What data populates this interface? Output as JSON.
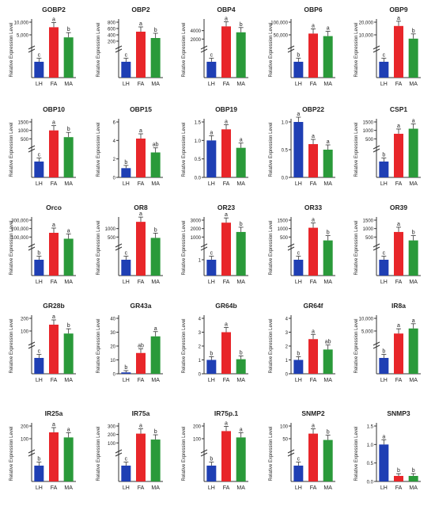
{
  "figure": {
    "ylabel": "Relative Expression Level",
    "colors": {
      "LH": "#1f3fb4",
      "FA": "#e8262a",
      "MA": "#2a9a3a"
    }
  },
  "chart_data": [
    {
      "type": "bar",
      "title": "GOBP2",
      "categories": [
        "LH",
        "FA",
        "MA"
      ],
      "values": [
        1,
        8000,
        4000
      ],
      "letters": [
        "c",
        "a",
        "b"
      ],
      "broken_axis": true,
      "yticks_lower": [],
      "yticks_upper": [
        "5,000",
        "10,000"
      ],
      "ylim_upper": [
        0,
        10000
      ]
    },
    {
      "type": "bar",
      "title": "OBP2",
      "categories": [
        "LH",
        "FA",
        "MA"
      ],
      "values": [
        1,
        500,
        300
      ],
      "letters": [
        "c",
        "a",
        "b"
      ],
      "broken_axis": true,
      "yticks_lower": [],
      "yticks_upper": [
        "200",
        "400",
        "600",
        "800"
      ],
      "ylim_upper": [
        0,
        800
      ]
    },
    {
      "type": "bar",
      "title": "OBP4",
      "categories": [
        "LH",
        "FA",
        "MA"
      ],
      "values": [
        1,
        5000,
        3600
      ],
      "letters": [
        "c",
        "a",
        "b"
      ],
      "broken_axis": true,
      "yticks_lower": [],
      "yticks_upper": [
        "2000",
        "4000"
      ],
      "ylim_upper": [
        0,
        6000
      ]
    },
    {
      "type": "bar",
      "title": "OBP6",
      "categories": [
        "LH",
        "FA",
        "MA"
      ],
      "values": [
        1,
        55000,
        45000
      ],
      "letters": [
        "b",
        "a",
        "a"
      ],
      "broken_axis": true,
      "yticks_lower": [],
      "yticks_upper": [
        "50,000",
        "100,000"
      ],
      "ylim_upper": [
        0,
        100000
      ]
    },
    {
      "type": "bar",
      "title": "OBP9",
      "categories": [
        "LH",
        "FA",
        "MA"
      ],
      "values": [
        1,
        17000,
        7000
      ],
      "letters": [
        "c",
        "a",
        "b"
      ],
      "broken_axis": true,
      "yticks_lower": [],
      "yticks_upper": [
        "10,000",
        "20,000"
      ],
      "ylim_upper": [
        0,
        20000
      ]
    },
    {
      "type": "bar",
      "title": "OBP10",
      "categories": [
        "LH",
        "FA",
        "MA"
      ],
      "values": [
        1,
        1000,
        600
      ],
      "letters": [
        "c",
        "a",
        "b"
      ],
      "broken_axis": true,
      "yticks_lower": [],
      "yticks_upper": [
        "500",
        "1000",
        "1500"
      ],
      "ylim_upper": [
        0,
        1500
      ]
    },
    {
      "type": "bar",
      "title": "OBP15",
      "categories": [
        "LH",
        "FA",
        "MA"
      ],
      "values": [
        1,
        4.2,
        2.7
      ],
      "letters": [
        "b",
        "a",
        "ab"
      ],
      "broken_axis": false,
      "yticks": [
        "0",
        "2",
        "4",
        "6"
      ],
      "ylim": [
        0,
        6
      ]
    },
    {
      "type": "bar",
      "title": "OBP19",
      "categories": [
        "LH",
        "FA",
        "MA"
      ],
      "values": [
        1,
        1.3,
        0.8
      ],
      "letters": [
        "a",
        "a",
        "a"
      ],
      "broken_axis": false,
      "yticks": [
        "0.0",
        "0.5",
        "1.0",
        "1.5"
      ],
      "ylim": [
        0,
        1.5
      ]
    },
    {
      "type": "bar",
      "title": "OBP22",
      "categories": [
        "LH",
        "FA",
        "MA"
      ],
      "values": [
        1,
        0.6,
        0.5
      ],
      "letters": [
        "a",
        "a",
        "a"
      ],
      "broken_axis": false,
      "yticks": [
        "0.0",
        "0.5",
        "1.0"
      ],
      "ylim": [
        0,
        1.0
      ]
    },
    {
      "type": "bar",
      "title": "CSP1",
      "categories": [
        "LH",
        "FA",
        "MA"
      ],
      "values": [
        1,
        800,
        1100
      ],
      "letters": [
        "b",
        "a",
        "a"
      ],
      "broken_axis": true,
      "yticks_lower": [],
      "yticks_upper": [
        "500",
        "1000",
        "1500"
      ],
      "ylim_upper": [
        0,
        1500
      ]
    },
    {
      "type": "bar",
      "title": "Orco",
      "categories": [
        "LH",
        "FA",
        "MA"
      ],
      "values": [
        1,
        150000,
        80000
      ],
      "letters": [
        "b",
        "a",
        "a"
      ],
      "broken_axis": true,
      "yticks_lower": [],
      "yticks_upper": [
        "100,000",
        "200,000",
        "300,000"
      ],
      "ylim_upper": [
        0,
        300000
      ]
    },
    {
      "type": "bar",
      "title": "OR8",
      "categories": [
        "LH",
        "FA",
        "MA"
      ],
      "values": [
        1,
        1400,
        450
      ],
      "letters": [
        "c",
        "a",
        "b"
      ],
      "broken_axis": true,
      "yticks_lower": [],
      "yticks_upper": [
        "500",
        "1000"
      ],
      "ylim_upper": [
        0,
        1500
      ]
    },
    {
      "type": "bar",
      "title": "OR23",
      "categories": [
        "LH",
        "FA",
        "MA"
      ],
      "values": [
        1,
        2700,
        1600
      ],
      "letters": [
        "c",
        "a",
        "b"
      ],
      "broken_axis": true,
      "yticks_lower": [
        "1"
      ],
      "yticks_upper": [
        "1000",
        "2000",
        "3000"
      ],
      "ylim_upper": [
        0,
        3000
      ]
    },
    {
      "type": "bar",
      "title": "OR33",
      "categories": [
        "LH",
        "FA",
        "MA"
      ],
      "values": [
        1,
        1050,
        300
      ],
      "letters": [
        "c",
        "a",
        "b"
      ],
      "broken_axis": true,
      "yticks_lower": [],
      "yticks_upper": [
        "500",
        "1000",
        "1500"
      ],
      "ylim_upper": [
        0,
        1500
      ]
    },
    {
      "type": "bar",
      "title": "OR39",
      "categories": [
        "LH",
        "FA",
        "MA"
      ],
      "values": [
        1,
        800,
        300
      ],
      "letters": [
        "c",
        "a",
        "b"
      ],
      "broken_axis": true,
      "yticks_lower": [],
      "yticks_upper": [
        "500",
        "1000",
        "1500"
      ],
      "ylim_upper": [
        0,
        1500
      ]
    },
    {
      "type": "bar",
      "title": "GR28b",
      "categories": [
        "LH",
        "FA",
        "MA"
      ],
      "values": [
        1,
        150,
        80
      ],
      "letters": [
        "c",
        "a",
        "b"
      ],
      "broken_axis": true,
      "yticks_lower": [],
      "yticks_upper": [
        "100",
        "200"
      ],
      "ylim_upper": [
        0,
        200
      ]
    },
    {
      "type": "bar",
      "title": "GR43a",
      "categories": [
        "LH",
        "FA",
        "MA"
      ],
      "values": [
        1,
        15,
        27
      ],
      "letters": [
        "b",
        "ab",
        "a"
      ],
      "broken_axis": false,
      "yticks": [
        "0",
        "10",
        "20",
        "30",
        "40"
      ],
      "ylim": [
        0,
        40
      ]
    },
    {
      "type": "bar",
      "title": "GR64b",
      "categories": [
        "LH",
        "FA",
        "MA"
      ],
      "values": [
        1,
        3,
        1.05
      ],
      "letters": [
        "b",
        "a",
        "b"
      ],
      "broken_axis": false,
      "yticks": [
        "0",
        "1",
        "2",
        "3",
        "4"
      ],
      "ylim": [
        0,
        4
      ]
    },
    {
      "type": "bar",
      "title": "GR64f",
      "categories": [
        "LH",
        "FA",
        "MA"
      ],
      "values": [
        1,
        2.5,
        1.75
      ],
      "letters": [
        "b",
        "a",
        "ab"
      ],
      "broken_axis": false,
      "yticks": [
        "0",
        "1",
        "2",
        "3",
        "4"
      ],
      "ylim": [
        0,
        4
      ]
    },
    {
      "type": "bar",
      "title": "IR8a",
      "categories": [
        "LH",
        "FA",
        "MA"
      ],
      "values": [
        1,
        4000,
        6000
      ],
      "letters": [
        "b",
        "a",
        "a"
      ],
      "broken_axis": true,
      "yticks_lower": [],
      "yticks_upper": [
        "5,000",
        "10,000"
      ],
      "ylim_upper": [
        0,
        10000
      ]
    },
    {
      "type": "bar",
      "title": "IR25a",
      "categories": [
        "LH",
        "FA",
        "MA"
      ],
      "values": [
        1,
        150,
        110
      ],
      "letters": [
        "b",
        "a",
        "a"
      ],
      "broken_axis": true,
      "yticks_lower": [],
      "yticks_upper": [
        "100",
        "200"
      ],
      "ylim_upper": [
        0,
        200
      ]
    },
    {
      "type": "bar",
      "title": "IR75a",
      "categories": [
        "LH",
        "FA",
        "MA"
      ],
      "values": [
        1,
        210,
        140
      ],
      "letters": [
        "c",
        "a",
        "b"
      ],
      "broken_axis": true,
      "yticks_lower": [],
      "yticks_upper": [
        "100",
        "200",
        "300"
      ],
      "ylim_upper": [
        0,
        300
      ]
    },
    {
      "type": "bar",
      "title": "IR75p.1",
      "categories": [
        "LH",
        "FA",
        "MA"
      ],
      "values": [
        1,
        160,
        110
      ],
      "letters": [
        "b",
        "a",
        "a"
      ],
      "broken_axis": true,
      "yticks_lower": [],
      "yticks_upper": [
        "100",
        "200"
      ],
      "ylim_upper": [
        0,
        200
      ]
    },
    {
      "type": "bar",
      "title": "SNMP2",
      "categories": [
        "LH",
        "FA",
        "MA"
      ],
      "values": [
        1,
        70,
        45
      ],
      "letters": [
        "c",
        "a",
        "b"
      ],
      "broken_axis": true,
      "yticks_lower": [],
      "yticks_upper": [
        "50",
        "100"
      ],
      "ylim_upper": [
        0,
        100
      ]
    },
    {
      "type": "bar",
      "title": "SNMP3",
      "categories": [
        "LH",
        "FA",
        "MA"
      ],
      "values": [
        1,
        0.15,
        0.15
      ],
      "letters": [
        "a",
        "b",
        "b"
      ],
      "broken_axis": false,
      "yticks": [
        "0.0",
        "0.5",
        "1.0",
        "1.5"
      ],
      "ylim": [
        0,
        1.5
      ]
    }
  ]
}
